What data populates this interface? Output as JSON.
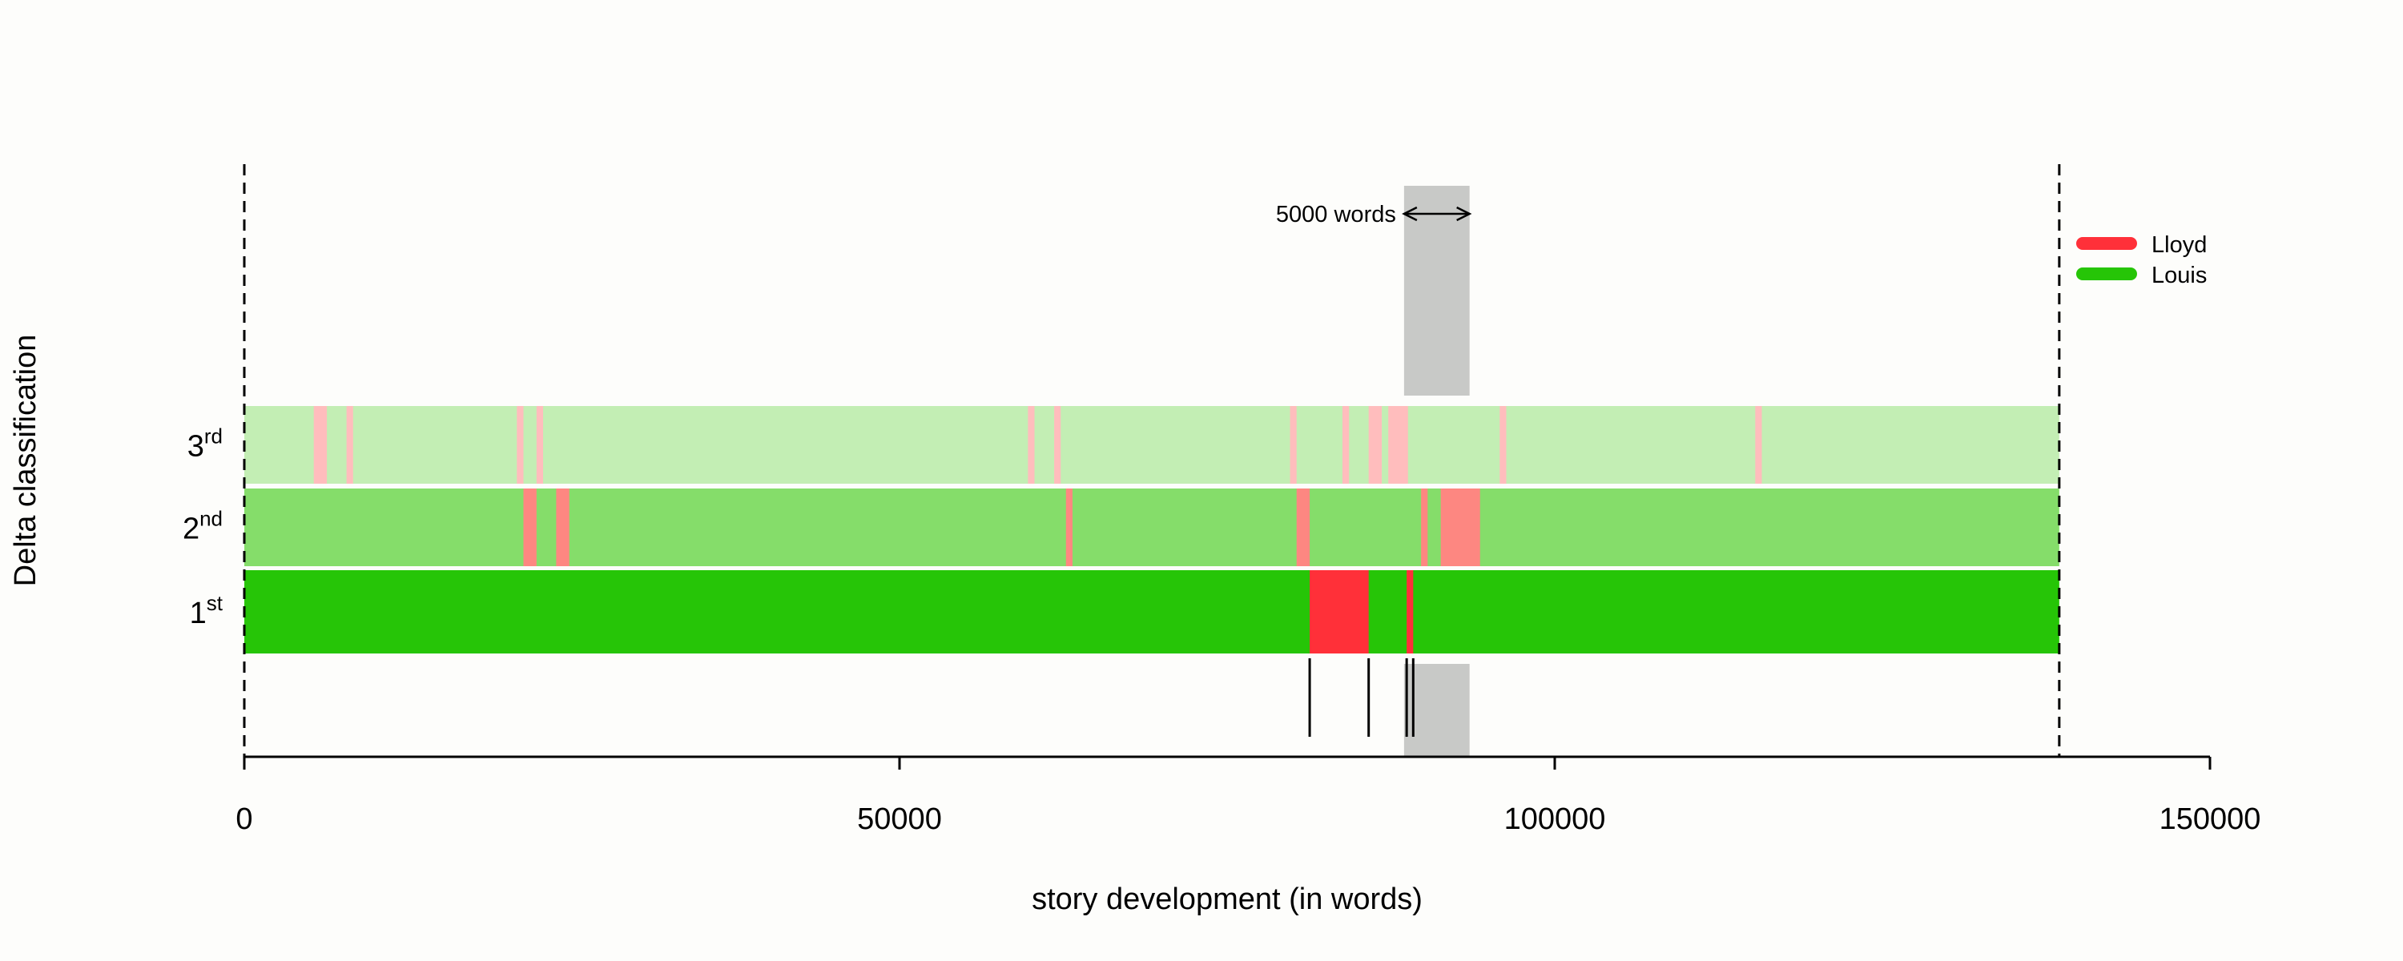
{
  "chart_data": {
    "type": "heatmap",
    "xlabel": "story development (in words)",
    "ylabel": "Delta classification",
    "xlim": [
      0,
      150000
    ],
    "x_ticks": [
      "0",
      "50000",
      "100000",
      "150000"
    ],
    "x_tick_values": [
      0,
      50000,
      100000,
      150000
    ],
    "text_end": 138500,
    "rows": [
      {
        "rank": "1",
        "suffix": "st",
        "base_color": "#26c507",
        "highlight_color": "#ff3039",
        "lloyd_segments": [
          [
            81300,
            85800
          ],
          [
            88700,
            89200
          ]
        ]
      },
      {
        "rank": "2",
        "suffix": "nd",
        "base_color": "#85dd6a",
        "highlight_color": "#fd8781",
        "lloyd_segments": [
          [
            21300,
            22300
          ],
          [
            23800,
            24800
          ],
          [
            62700,
            63200
          ],
          [
            80300,
            81300
          ],
          [
            89800,
            90300
          ],
          [
            91300,
            94300
          ]
        ]
      },
      {
        "rank": "3",
        "suffix": "rd",
        "base_color": "#c3eeb4",
        "highlight_color": "#ffbdbd",
        "lloyd_segments": [
          [
            5300,
            6300
          ],
          [
            7800,
            8300
          ],
          [
            20800,
            21300
          ],
          [
            22300,
            22800
          ],
          [
            59800,
            60300
          ],
          [
            61800,
            62300
          ],
          [
            79800,
            80300
          ],
          [
            83800,
            84300
          ],
          [
            85800,
            86800
          ],
          [
            87300,
            88800
          ],
          [
            95800,
            96300
          ],
          [
            115300,
            115800
          ]
        ]
      }
    ],
    "breakpoints": [
      81300,
      85800,
      88700,
      89200
    ],
    "window": {
      "start": 88500,
      "end": 93500,
      "label": "5000 words"
    },
    "legend": [
      {
        "name": "Lloyd",
        "color": "#ff3039"
      },
      {
        "name": "Louis",
        "color": "#26c507"
      }
    ],
    "legend_position": "top-right",
    "window_color": "#c8c9c7"
  }
}
